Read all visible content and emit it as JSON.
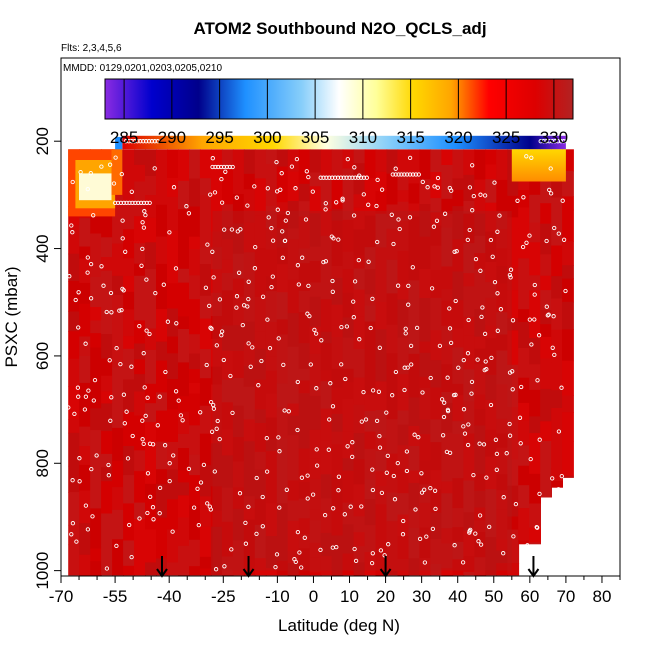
{
  "chart_data": {
    "type": "heatmap",
    "title": "ATOM2 Southbound N2O_QCLS_adj",
    "subtitle_flights": "Flts: 2,3,4,5,6",
    "subtitle_dates": "MMDD: 0129,0201,0203,0205,0210",
    "xlabel": "Latitude (deg N)",
    "ylabel": "PSXC (mbar)",
    "xlim": [
      -70,
      85
    ],
    "ylim": [
      1010,
      45
    ],
    "y_reversed": true,
    "x_ticks": [
      -70,
      -55,
      -40,
      -25,
      -10,
      0,
      10,
      20,
      30,
      40,
      50,
      60,
      70,
      80
    ],
    "x_minor_ticks": [
      -65,
      -60,
      -50,
      -45,
      -35,
      -30,
      -20,
      -15,
      -5,
      5,
      15,
      25,
      35,
      45,
      55,
      65,
      75,
      85
    ],
    "y_ticks": [
      200,
      400,
      600,
      800,
      1000
    ],
    "colorbar": {
      "ticks": [
        285,
        290,
        295,
        300,
        305,
        310,
        315,
        320,
        325,
        330
      ],
      "range": [
        283,
        332
      ],
      "colors": [
        "#8a2be2",
        "#0000cd",
        "#00008b",
        "#1e90ff",
        "#87cefa",
        "#ffffff",
        "#ffff99",
        "#ffd700",
        "#ffa500",
        "#ff0000",
        "#dd0000",
        "#b22222"
      ]
    },
    "profile_markers_lat": [
      -42,
      -18,
      20,
      61
    ],
    "field_summary": {
      "background_value": 327,
      "domain_lat": [
        -68,
        72
      ],
      "domain_pressure": [
        200,
        1000
      ],
      "upper_band": {
        "pressure_range": [
          190,
          215
        ],
        "lat_start": -53,
        "lat_end": 70,
        "value_start": 322,
        "value_end": 288
      },
      "low_feature": {
        "lat_range": [
          -65,
          -56
        ],
        "pressure_range": [
          260,
          310
        ],
        "value": 314
      },
      "warm_band": {
        "lat_range": [
          55,
          70
        ],
        "pressure_range": [
          215,
          275
        ],
        "value": 318
      }
    }
  }
}
